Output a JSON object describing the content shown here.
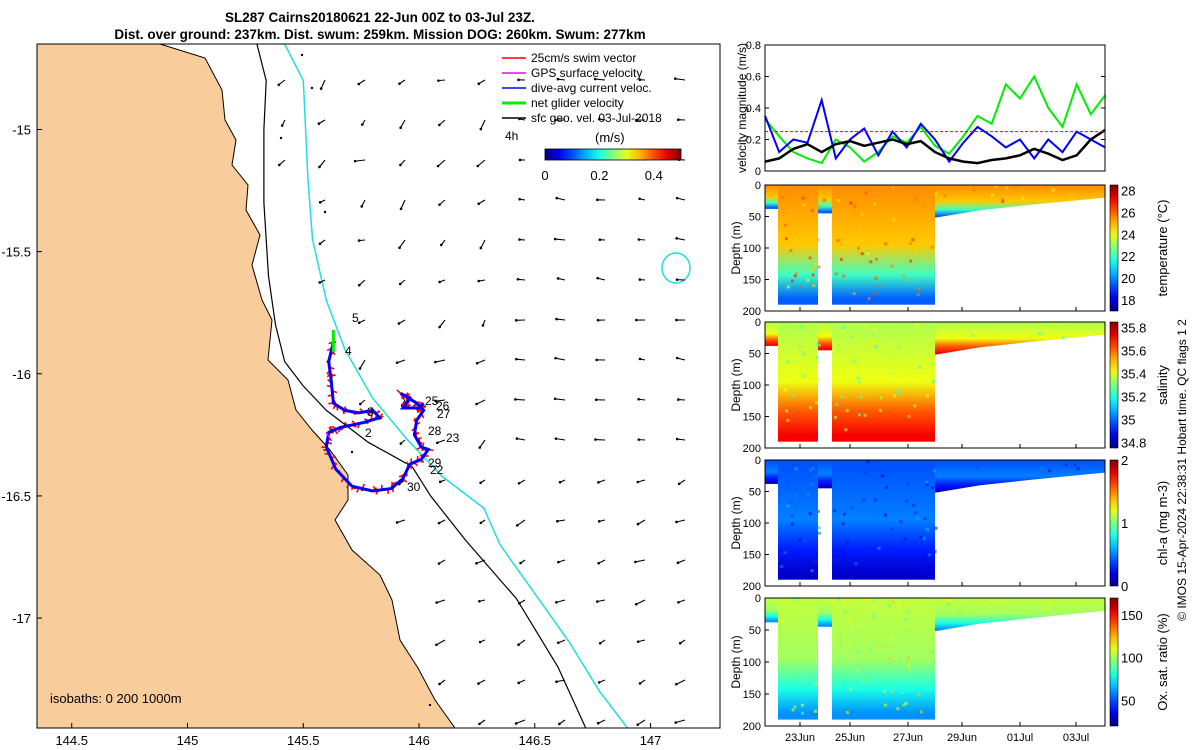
{
  "title": {
    "line1": "SL287 Cairns20180621 22-Jun 00Z to 03-Jul 23Z.",
    "line2": "Dist. over ground: 237km. Dist. swum: 259km. Mission DOG: 260km. Swum: 277km"
  },
  "colors": {
    "land": "#f9cc9c",
    "isobath_200": "#000000",
    "isobath_1000": "#22dddd",
    "track_red": "#ff0000",
    "track_blue": "#0000ff",
    "net_green": "#00ee00",
    "gps_magenta": "#ee00ee"
  },
  "chart_data": [
    {
      "type": "scatter",
      "name": "glider track map",
      "xlabel": "",
      "ylabel": "",
      "xlim": [
        144.35,
        147.3
      ],
      "ylim": [
        -17.45,
        -14.65
      ],
      "xticks": [
        "144.5",
        "145",
        "145.5",
        "146",
        "146.5",
        "147"
      ],
      "yticks": [
        "-15",
        "-15.5",
        "-16",
        "-16.5",
        "-17"
      ],
      "legend": [
        {
          "label": "25cm/s swim vector",
          "color": "#ff0000"
        },
        {
          "label": "GPS surface velocity",
          "color": "#ee00ee"
        },
        {
          "label": "dive-avg current veloc.",
          "color": "#0000ff"
        },
        {
          "label": "net glider velocity",
          "color": "#00ee00"
        },
        {
          "label": "sfc geo. vel. 03-Jul-2018",
          "color": "#000000"
        }
      ],
      "colorbar": {
        "label": "(m/s)",
        "ticks": [
          "0",
          "0.2",
          "0.4"
        ],
        "range": [
          0,
          0.5
        ]
      },
      "isobaths_label": "isobaths: 0   200  1000m",
      "day_labels": [
        "2",
        "3",
        "4",
        "5",
        "22",
        "23",
        "25",
        "26",
        "27",
        "28",
        "29",
        "30"
      ],
      "extra_label": "4h",
      "track": [
        [
          145.63,
          -15.87
        ],
        [
          145.61,
          -15.95
        ],
        [
          145.62,
          -16.02
        ],
        [
          145.63,
          -16.12
        ],
        [
          145.68,
          -16.15
        ],
        [
          145.74,
          -16.16
        ],
        [
          145.8,
          -16.15
        ],
        [
          145.83,
          -16.18
        ],
        [
          145.76,
          -16.2
        ],
        [
          145.66,
          -16.22
        ],
        [
          145.61,
          -16.24
        ],
        [
          145.6,
          -16.3
        ],
        [
          145.64,
          -16.39
        ],
        [
          145.71,
          -16.46
        ],
        [
          145.8,
          -16.48
        ],
        [
          145.88,
          -16.47
        ],
        [
          145.93,
          -16.43
        ],
        [
          145.96,
          -16.37
        ],
        [
          146.01,
          -16.35
        ],
        [
          146.04,
          -16.31
        ],
        [
          146.01,
          -16.3
        ],
        [
          145.98,
          -16.25
        ],
        [
          145.99,
          -16.19
        ],
        [
          146.02,
          -16.15
        ],
        [
          145.99,
          -16.12
        ],
        [
          145.92,
          -16.08
        ],
        [
          145.96,
          -16.1
        ],
        [
          145.93,
          -16.14
        ],
        [
          146.0,
          -16.14
        ],
        [
          146.02,
          -16.12
        ]
      ],
      "isobath_200": [
        [
          145.3,
          -14.65
        ],
        [
          145.34,
          -14.8
        ],
        [
          145.33,
          -15.0
        ],
        [
          145.33,
          -15.3
        ],
        [
          145.35,
          -15.6
        ],
        [
          145.38,
          -15.8
        ],
        [
          145.42,
          -15.95
        ],
        [
          145.5,
          -16.05
        ],
        [
          145.6,
          -16.15
        ],
        [
          145.78,
          -16.28
        ],
        [
          145.97,
          -16.38
        ],
        [
          146.05,
          -16.5
        ],
        [
          146.2,
          -16.68
        ],
        [
          146.42,
          -16.92
        ],
        [
          146.6,
          -17.2
        ],
        [
          146.72,
          -17.45
        ]
      ],
      "isobath_1000": [
        [
          145.42,
          -14.65
        ],
        [
          145.5,
          -14.8
        ],
        [
          145.51,
          -15.0
        ],
        [
          145.52,
          -15.2
        ],
        [
          145.54,
          -15.45
        ],
        [
          145.6,
          -15.7
        ],
        [
          145.68,
          -15.9
        ],
        [
          145.8,
          -16.1
        ],
        [
          145.95,
          -16.27
        ],
        [
          146.1,
          -16.42
        ],
        [
          146.28,
          -16.55
        ],
        [
          146.35,
          -16.7
        ],
        [
          146.5,
          -16.9
        ],
        [
          146.65,
          -17.1
        ],
        [
          146.78,
          -17.3
        ],
        [
          146.9,
          -17.45
        ]
      ]
    },
    {
      "type": "line",
      "name": "velocity magnitude",
      "ylabel": "velocity magnitude (m/s)",
      "ylim": [
        0,
        0.8
      ],
      "yticks": [
        "0",
        "0.2",
        "0.4",
        "0.6",
        "0.8"
      ],
      "xlim": [
        22,
        34
      ],
      "series": [
        {
          "name": "net glider velocity",
          "color": "#00ee00",
          "x": [
            22.0,
            22.5,
            23.0,
            23.5,
            24.0,
            24.5,
            25.0,
            25.5,
            26.0,
            26.5,
            27.0,
            27.5,
            28.0,
            28.5,
            29.0,
            29.5,
            30.0,
            30.5,
            31.0,
            31.5,
            32.0,
            32.5,
            33.0,
            33.5,
            34.0
          ],
          "values": [
            0.33,
            0.22,
            0.12,
            0.08,
            0.05,
            0.2,
            0.15,
            0.06,
            0.12,
            0.22,
            0.18,
            0.28,
            0.16,
            0.11,
            0.22,
            0.35,
            0.3,
            0.55,
            0.46,
            0.6,
            0.4,
            0.28,
            0.55,
            0.36,
            0.48
          ]
        },
        {
          "name": "dive-avg current veloc.",
          "color": "#0000ff",
          "x": [
            22.0,
            22.5,
            23.0,
            23.5,
            24.0,
            24.5,
            25.0,
            25.5,
            26.0,
            26.5,
            27.0,
            27.5,
            28.0,
            28.5,
            29.0,
            29.5,
            30.0,
            30.5,
            31.0,
            31.5,
            32.0,
            32.5,
            33.0,
            33.5,
            34.0
          ],
          "values": [
            0.35,
            0.12,
            0.2,
            0.18,
            0.45,
            0.08,
            0.2,
            0.27,
            0.1,
            0.25,
            0.15,
            0.3,
            0.2,
            0.06,
            0.18,
            0.28,
            0.22,
            0.15,
            0.2,
            0.08,
            0.2,
            0.12,
            0.25,
            0.2,
            0.15
          ]
        },
        {
          "name": "sfc geo. vel.",
          "color": "#000000",
          "x": [
            22.0,
            22.5,
            23.0,
            23.5,
            24.0,
            24.5,
            25.0,
            25.5,
            26.0,
            26.5,
            27.0,
            27.5,
            28.0,
            28.5,
            29.0,
            29.5,
            30.0,
            30.5,
            31.0,
            31.5,
            32.0,
            32.5,
            33.0,
            33.5,
            34.0
          ],
          "values": [
            0.06,
            0.08,
            0.14,
            0.17,
            0.12,
            0.17,
            0.19,
            0.16,
            0.18,
            0.2,
            0.17,
            0.19,
            0.12,
            0.08,
            0.06,
            0.05,
            0.07,
            0.08,
            0.1,
            0.14,
            0.11,
            0.07,
            0.1,
            0.2,
            0.26
          ]
        },
        {
          "name": "25cm/s swim vector",
          "color": "#ff0000",
          "x": [
            22.0,
            34.0
          ],
          "values": [
            0.25,
            0.25
          ]
        }
      ]
    },
    {
      "type": "heatmap",
      "name": "temperature",
      "ylabel": "Depth (m)",
      "yticks": [
        "0",
        "50",
        "100",
        "150",
        "200"
      ],
      "colorbar": {
        "label": "temperature (°C)",
        "ticks": [
          "18",
          "20",
          "22",
          "24",
          "26",
          "28"
        ],
        "range": [
          17,
          28.5
        ]
      },
      "depth_profile": [
        {
          "depth": 0,
          "value": 25.5
        },
        {
          "depth": 100,
          "value": 24.8
        },
        {
          "depth": 150,
          "value": 22
        },
        {
          "depth": 190,
          "value": 19.5
        }
      ]
    },
    {
      "type": "heatmap",
      "name": "salinity",
      "ylabel": "Depth (m)",
      "yticks": [
        "0",
        "50",
        "100",
        "150",
        "200"
      ],
      "colorbar": {
        "label": "salinity",
        "ticks": [
          "34.8",
          "35",
          "35.2",
          "35.4",
          "35.6",
          "35.8"
        ],
        "range": [
          34.75,
          35.85
        ]
      },
      "depth_profile": [
        {
          "depth": 0,
          "value": 35.35
        },
        {
          "depth": 100,
          "value": 35.42
        },
        {
          "depth": 150,
          "value": 35.62
        },
        {
          "depth": 190,
          "value": 35.72
        }
      ]
    },
    {
      "type": "heatmap",
      "name": "chl-a",
      "ylabel": "Depth (m)",
      "yticks": [
        "0",
        "50",
        "100",
        "150",
        "200"
      ],
      "colorbar": {
        "label": "chl-a (mg m-3)",
        "ticks": [
          "0",
          "1",
          "2"
        ],
        "range": [
          0,
          2
        ]
      },
      "depth_profile": [
        {
          "depth": 0,
          "value": 0.4
        },
        {
          "depth": 100,
          "value": 0.5
        },
        {
          "depth": 150,
          "value": 0.3
        },
        {
          "depth": 190,
          "value": 0.15
        }
      ]
    },
    {
      "type": "heatmap",
      "name": "oxygen saturation",
      "ylabel": "Depth (m)",
      "yticks": [
        "0",
        "50",
        "100",
        "150",
        "200"
      ],
      "xticks": [
        "23Jun",
        "25Jun",
        "27Jun",
        "29Jun",
        "01Jul",
        "03Jul"
      ],
      "colorbar": {
        "label": "Ox. sat. ratio (%)",
        "ticks": [
          "50",
          "100",
          "150"
        ],
        "range": [
          20,
          170
        ]
      },
      "depth_profile": [
        {
          "depth": 0,
          "value": 105
        },
        {
          "depth": 100,
          "value": 100
        },
        {
          "depth": 150,
          "value": 80
        },
        {
          "depth": 190,
          "value": 60
        }
      ]
    }
  ],
  "credit": "© IMOS 15-Apr-2024 22:38:31 Hobart time. QC flags 1  2"
}
